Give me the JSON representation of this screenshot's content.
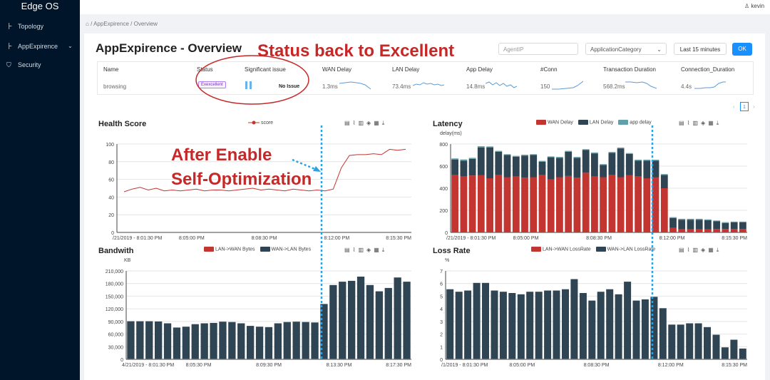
{
  "sidebar": {
    "brand": "Edge OS",
    "items": [
      {
        "label": "Topology",
        "icon": "line-chart-icon"
      },
      {
        "label": "AppExpirence",
        "icon": "line-chart-icon"
      },
      {
        "label": "Security",
        "icon": "shield-icon"
      }
    ]
  },
  "header": {
    "user": "kevin"
  },
  "breadcrumb": {
    "home": "⌂",
    "sep": "/",
    "item1": "AppExpirence",
    "item2": "Overview"
  },
  "page": {
    "title": "AppExpirence - Overview"
  },
  "filters": {
    "agent_placeholder": "AgentIP",
    "category_placeholder": "ApplicationCategory",
    "range_label": "Last 15 minutes",
    "ok_label": "OK"
  },
  "summary": {
    "headers": [
      "Name",
      "Status",
      "Significant issue",
      "WAN Delay",
      "LAN Delay",
      "App Delay",
      "#Conn",
      "Transaction Duration",
      "Connection_Duration"
    ],
    "row": {
      "name": "browsing",
      "status": "Exexcellent",
      "issue": "No Issue",
      "wan_delay": "1.3ms",
      "lan_delay": "73.4ms",
      "app_delay": "14.8ms",
      "conn": "150",
      "transaction_duration": "568.2ms",
      "connection_duration": "4.4s"
    }
  },
  "pager": {
    "page": "1",
    "prev": "‹",
    "next": "›"
  },
  "annotations": {
    "status_note": "Status back to Excellent",
    "enable_note_line1": "After Enable",
    "enable_note_line2": "Self-Optimization"
  },
  "colors": {
    "accent": "#1890ff",
    "red": "#c23531",
    "navy": "#2f4554",
    "teal": "#61a0a8",
    "annotation": "#c62828",
    "marker_line": "#29a3e6"
  },
  "toolbox_icons": [
    "document-icon",
    "line-chart-icon",
    "bar-chart-icon",
    "stack-icon",
    "tiled-icon",
    "download-icon"
  ],
  "chart_data": [
    {
      "id": "health",
      "type": "line",
      "title": "Health Score",
      "series": [
        {
          "name": "score",
          "values": [
            46,
            49,
            51,
            48,
            50,
            47,
            48,
            47,
            48,
            49,
            47,
            48,
            48,
            47,
            48,
            49,
            50,
            48,
            49,
            48,
            47,
            49,
            48,
            47,
            48,
            47,
            49,
            73,
            87,
            88,
            88,
            89,
            88,
            94,
            93,
            94
          ]
        }
      ],
      "x_ticks": [
        "/21/2019 - 8:01:30 PM",
        "8:05:00 PM",
        "8:08:30 PM",
        "8:12:00 PM",
        "8:15:30 PM"
      ],
      "ylim": [
        0,
        100
      ],
      "y_ticks": [
        "0",
        "20",
        "40",
        "60",
        "80",
        "100"
      ]
    },
    {
      "id": "latency",
      "type": "bar",
      "stacked": true,
      "title": "Latency",
      "ylabel": "delay(ms)",
      "ylim": [
        0,
        800
      ],
      "y_ticks": [
        "0",
        "200",
        "400",
        "600",
        "800"
      ],
      "x_ticks": [
        "/21/2019 - 8:01:30 PM",
        "8:05:00 PM",
        "8:08:30 PM",
        "8:12:00 PM",
        "8:15:30 PM"
      ],
      "series": [
        {
          "name": "WAN Delay",
          "values": [
            520,
            510,
            515,
            520,
            490,
            520,
            500,
            505,
            495,
            500,
            520,
            480,
            500,
            510,
            495,
            540,
            505,
            500,
            520,
            500,
            520,
            510,
            490,
            500,
            400,
            40,
            30,
            30,
            30,
            30,
            30,
            30,
            30,
            30
          ]
        },
        {
          "name": "LAN Delay",
          "values": [
            140,
            140,
            150,
            250,
            280,
            210,
            200,
            180,
            200,
            200,
            120,
            200,
            175,
            220,
            180,
            205,
            210,
            110,
            200,
            260,
            190,
            140,
            160,
            150,
            120,
            90,
            85,
            85,
            85,
            80,
            70,
            55,
            60,
            60
          ]
        },
        {
          "name": "app delay",
          "values": [
            10,
            10,
            10,
            10,
            8,
            8,
            8,
            8,
            8,
            8,
            8,
            8,
            8,
            8,
            8,
            8,
            8,
            8,
            8,
            8,
            8,
            8,
            8,
            8,
            8,
            8,
            8,
            8,
            8,
            8,
            8,
            8,
            8,
            8
          ]
        }
      ]
    },
    {
      "id": "bandwidth",
      "type": "bar",
      "stacked": true,
      "title": "Bandwith",
      "ylabel": "KB",
      "ylim": [
        0,
        210000
      ],
      "y_ticks": [
        "0",
        "30,000",
        "60,000",
        "90,000",
        "120,000",
        "150,000",
        "180,000",
        "210,000"
      ],
      "x_ticks": [
        "4/21/2019 - 8:01:30 PM",
        "8:05:30 PM",
        "8:09:30 PM",
        "8:13:30 PM",
        "8:17:30 PM"
      ],
      "series": [
        {
          "name": "LAN->WAN Bytes",
          "values": [
            1500,
            1500,
            1500,
            1500,
            1500,
            1500,
            1500,
            1500,
            1500,
            1500,
            1500,
            1500,
            1500,
            1500,
            1500,
            1500,
            1500,
            1500,
            1500,
            1500,
            1500,
            1500,
            1500,
            1500,
            1500,
            1500,
            1500,
            1500,
            1500,
            1500,
            1500
          ]
        },
        {
          "name": "WAN->LAN Bytes",
          "values": [
            89000,
            89000,
            89000,
            88500,
            84000,
            74000,
            76000,
            82000,
            84000,
            85000,
            88000,
            87000,
            84000,
            78000,
            76000,
            75000,
            84000,
            87000,
            88000,
            87000,
            86000,
            130000,
            175000,
            183000,
            185000,
            195000,
            175000,
            160000,
            168000,
            193000,
            183000
          ]
        }
      ]
    },
    {
      "id": "lossrate",
      "type": "bar",
      "stacked": true,
      "title": "Loss Rate",
      "ylabel": "%",
      "ylim": [
        0,
        7
      ],
      "y_ticks": [
        "0",
        "1",
        "2",
        "3",
        "4",
        "5",
        "6",
        "7"
      ],
      "x_ticks": [
        "/1/2019 - 8:01:30 PM",
        "8:05:00 PM",
        "8:08:30 PM",
        "8:12:00 PM",
        "8:15:30 PM"
      ],
      "series": [
        {
          "name": "LAN->WAN LossRate",
          "values": [
            0.05,
            0.05,
            0.05,
            0.05,
            0.05,
            0.05,
            0.05,
            0.05,
            0.05,
            0.05,
            0.05,
            0.05,
            0.05,
            0.05,
            0.05,
            0.05,
            0.05,
            0.05,
            0.05,
            0.05,
            0.05,
            0.05,
            0.05,
            0.05,
            0.05,
            0.05,
            0.05,
            0.05,
            0.05,
            0.05,
            0.05,
            0.05,
            0.05,
            0.05
          ]
        },
        {
          "name": "WAN->LAN LossRate",
          "values": [
            5.5,
            5.3,
            5.4,
            6.0,
            6.0,
            5.4,
            5.3,
            5.2,
            5.1,
            5.3,
            5.3,
            5.4,
            5.4,
            5.5,
            6.3,
            5.2,
            4.6,
            5.3,
            5.5,
            5.1,
            6.1,
            4.6,
            4.7,
            4.9,
            4.0,
            2.7,
            2.7,
            2.8,
            2.8,
            2.5,
            1.9,
            0.9,
            1.5,
            0.8
          ]
        }
      ]
    }
  ]
}
